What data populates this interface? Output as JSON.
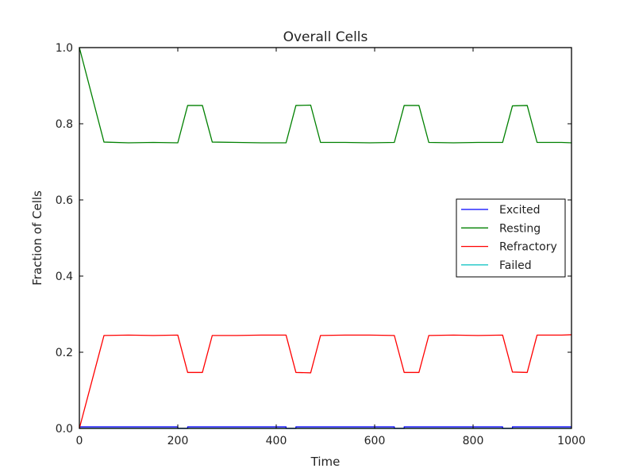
{
  "chart_data": {
    "type": "line",
    "title": "Overall Cells",
    "xlabel": "Time",
    "ylabel": "Fraction of Cells",
    "xlim": [
      0,
      1000
    ],
    "ylim": [
      0,
      1.0
    ],
    "xticks": [
      0,
      200,
      400,
      600,
      800,
      1000
    ],
    "xtick_labels": [
      "0",
      "200",
      "400",
      "600",
      "800",
      "1000"
    ],
    "yticks": [
      0,
      0.2,
      0.4,
      0.6,
      0.8,
      1.0
    ],
    "ytick_labels": [
      "0.0",
      "0.2",
      "0.4",
      "0.6",
      "0.8",
      "1.0"
    ],
    "grid": false,
    "legend_position": "center-right",
    "series": [
      {
        "name": "Excited",
        "color": "#0000ff",
        "x": [
          0,
          200,
          200,
          220,
          220,
          420,
          420,
          440,
          440,
          640,
          640,
          660,
          660,
          860,
          860,
          880,
          880,
          1000
        ],
        "y": [
          0.004,
          0.004,
          0.0,
          0.0,
          0.004,
          0.004,
          0.0,
          0.0,
          0.004,
          0.004,
          0.0,
          0.0,
          0.004,
          0.004,
          0.0,
          0.0,
          0.004,
          0.004
        ]
      },
      {
        "name": "Resting",
        "color": "#008000",
        "x": [
          0,
          50,
          100,
          150,
          200,
          220,
          250,
          270,
          320,
          370,
          420,
          440,
          470,
          490,
          540,
          590,
          640,
          660,
          690,
          710,
          760,
          810,
          860,
          880,
          910,
          930,
          980,
          1000
        ],
        "y": [
          1.0,
          0.752,
          0.75,
          0.751,
          0.75,
          0.848,
          0.848,
          0.752,
          0.751,
          0.75,
          0.75,
          0.848,
          0.849,
          0.751,
          0.751,
          0.75,
          0.751,
          0.848,
          0.848,
          0.751,
          0.75,
          0.751,
          0.751,
          0.847,
          0.848,
          0.751,
          0.751,
          0.75
        ]
      },
      {
        "name": "Refractory",
        "color": "#ff0000",
        "x": [
          0,
          50,
          100,
          150,
          200,
          220,
          250,
          270,
          320,
          370,
          420,
          440,
          470,
          490,
          540,
          590,
          640,
          660,
          690,
          710,
          760,
          810,
          860,
          880,
          910,
          930,
          980,
          1000
        ],
        "y": [
          0.0,
          0.244,
          0.245,
          0.244,
          0.245,
          0.147,
          0.147,
          0.244,
          0.244,
          0.245,
          0.245,
          0.147,
          0.146,
          0.244,
          0.245,
          0.245,
          0.244,
          0.147,
          0.147,
          0.244,
          0.245,
          0.244,
          0.245,
          0.148,
          0.147,
          0.245,
          0.245,
          0.246
        ]
      },
      {
        "name": "Failed",
        "color": "#00bfbf",
        "x": [
          0,
          1000
        ],
        "y": [
          0.0,
          0.0
        ]
      }
    ]
  }
}
